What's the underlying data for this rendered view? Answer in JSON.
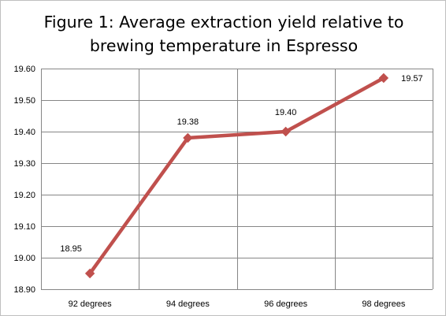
{
  "chart_data": {
    "type": "line",
    "title": "Figure 1: Average extraction yield relative to brewing temperature in Espresso",
    "xlabel": "",
    "ylabel": "",
    "categories": [
      "92 degrees",
      "94 degrees",
      "96 degrees",
      "98 degrees"
    ],
    "series": [
      {
        "values": [
          18.95,
          19.38,
          19.4,
          19.57
        ],
        "data_labels": [
          "18.95",
          "19.38",
          "19.40",
          "19.57"
        ],
        "color": "#c0504d",
        "marker": "diamond"
      }
    ],
    "ylim": [
      18.9,
      19.6
    ],
    "yticks": [
      18.9,
      19.0,
      19.1,
      19.2,
      19.3,
      19.4,
      19.5,
      19.6
    ],
    "ytick_labels": [
      "18.90",
      "19.00",
      "19.10",
      "19.20",
      "19.30",
      "19.40",
      "19.50",
      "19.60"
    ],
    "grid": true,
    "legend": "none"
  }
}
